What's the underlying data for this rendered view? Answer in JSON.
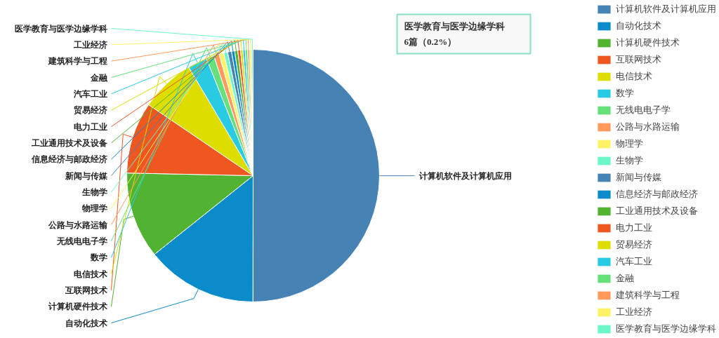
{
  "chart_data": {
    "type": "pie",
    "categories": [
      "计算机软件及计算机应用",
      "自动化技术",
      "计算机硬件技术",
      "互联网技术",
      "电信技术",
      "数学",
      "无线电电子学",
      "公路与水路运输",
      "物理学",
      "生物学",
      "新闻与传媒",
      "信息经济与邮政经济",
      "工业通用技术及设备",
      "电力工业",
      "贸易经济",
      "汽车工业",
      "金融",
      "建筑科学与工程",
      "工业经济",
      "医学教育与医学边缘学科"
    ],
    "values": [
      50.2,
      14.3,
      11.1,
      9.2,
      7,
      2.5,
      1,
      0.7,
      0.6,
      0.5,
      0.5,
      0.4,
      0.4,
      0.35,
      0.3,
      0.3,
      0.3,
      0.25,
      0.25,
      0.2
    ],
    "colors": [
      "#4682b4",
      "#0b8bc9",
      "#52b332",
      "#ee5720",
      "#dddd00",
      "#29cbe3",
      "#66e07a",
      "#ff9a5c",
      "#fff266",
      "#6cf7c8",
      "#4682b4",
      "#0b8bc9",
      "#52b332",
      "#ee5720",
      "#dddd00",
      "#29cbe3",
      "#66e07a",
      "#ff9a5c",
      "#fff266",
      "#6cf7c8"
    ],
    "legend": "right",
    "annotations": [
      "医学教育与医学边缘学科\n6篇（0.2%）"
    ]
  }
}
